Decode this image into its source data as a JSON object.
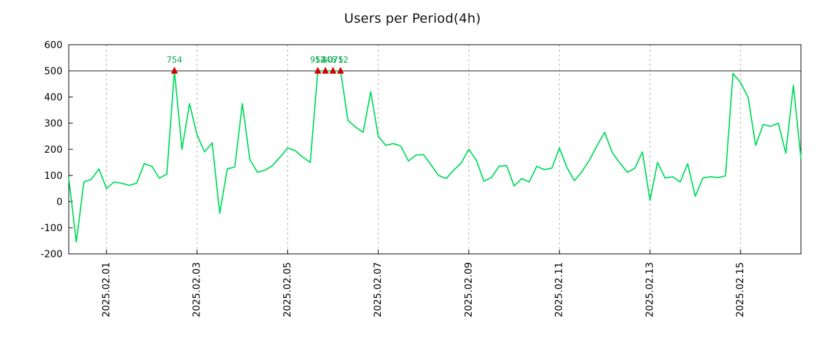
{
  "chart_data": {
    "type": "line",
    "title": "Users per Period(4h)",
    "xlabel": "",
    "ylabel": "",
    "period_hours": 4,
    "ylim": [
      -200,
      600
    ],
    "yticks": [
      600,
      500,
      400,
      300,
      200,
      100,
      0,
      -100,
      -200
    ],
    "grid": "vertical-dashed",
    "legend": "none",
    "cap_value": 500,
    "colors": {
      "line": "#00DC5A",
      "marker": "#D40000",
      "annotation": "#00A84B",
      "grid": "#ADADAD",
      "frame": "#000000",
      "cap_line": "#1A1A1A",
      "tick_text": "#000000"
    },
    "xticks": [
      {
        "label": "2025.02.01",
        "index": 5
      },
      {
        "label": "2025.02.03",
        "index": 17
      },
      {
        "label": "2025.02.05",
        "index": 29
      },
      {
        "label": "2025.02.07",
        "index": 41
      },
      {
        "label": "2025.02.09",
        "index": 53
      },
      {
        "label": "2025.02.11",
        "index": 65
      },
      {
        "label": "2025.02.13",
        "index": 77
      },
      {
        "label": "2025.02.15",
        "index": 89
      }
    ],
    "values": [
      90,
      -155,
      75,
      85,
      125,
      50,
      75,
      70,
      62,
      70,
      145,
      135,
      90,
      105,
      500,
      200,
      375,
      255,
      190,
      225,
      -45,
      125,
      132,
      375,
      160,
      112,
      120,
      138,
      170,
      205,
      195,
      170,
      150,
      500,
      500,
      500,
      500,
      310,
      285,
      265,
      420,
      250,
      215,
      222,
      212,
      155,
      178,
      180,
      140,
      100,
      88,
      120,
      148,
      200,
      158,
      78,
      92,
      135,
      138,
      60,
      88,
      75,
      135,
      122,
      128,
      205,
      130,
      80,
      115,
      160,
      215,
      265,
      188,
      148,
      112,
      128,
      190,
      5,
      150,
      90,
      95,
      75,
      145,
      20,
      90,
      95,
      92,
      98,
      490,
      455,
      400,
      215,
      295,
      288,
      300,
      185,
      445,
      165
    ],
    "annotations": [
      {
        "index": 14,
        "label": "754"
      },
      {
        "index": 33,
        "label": "954"
      },
      {
        "index": 34,
        "label": "1246"
      },
      {
        "index": 35,
        "label": "1075"
      },
      {
        "index": 36,
        "label": "712"
      }
    ]
  }
}
